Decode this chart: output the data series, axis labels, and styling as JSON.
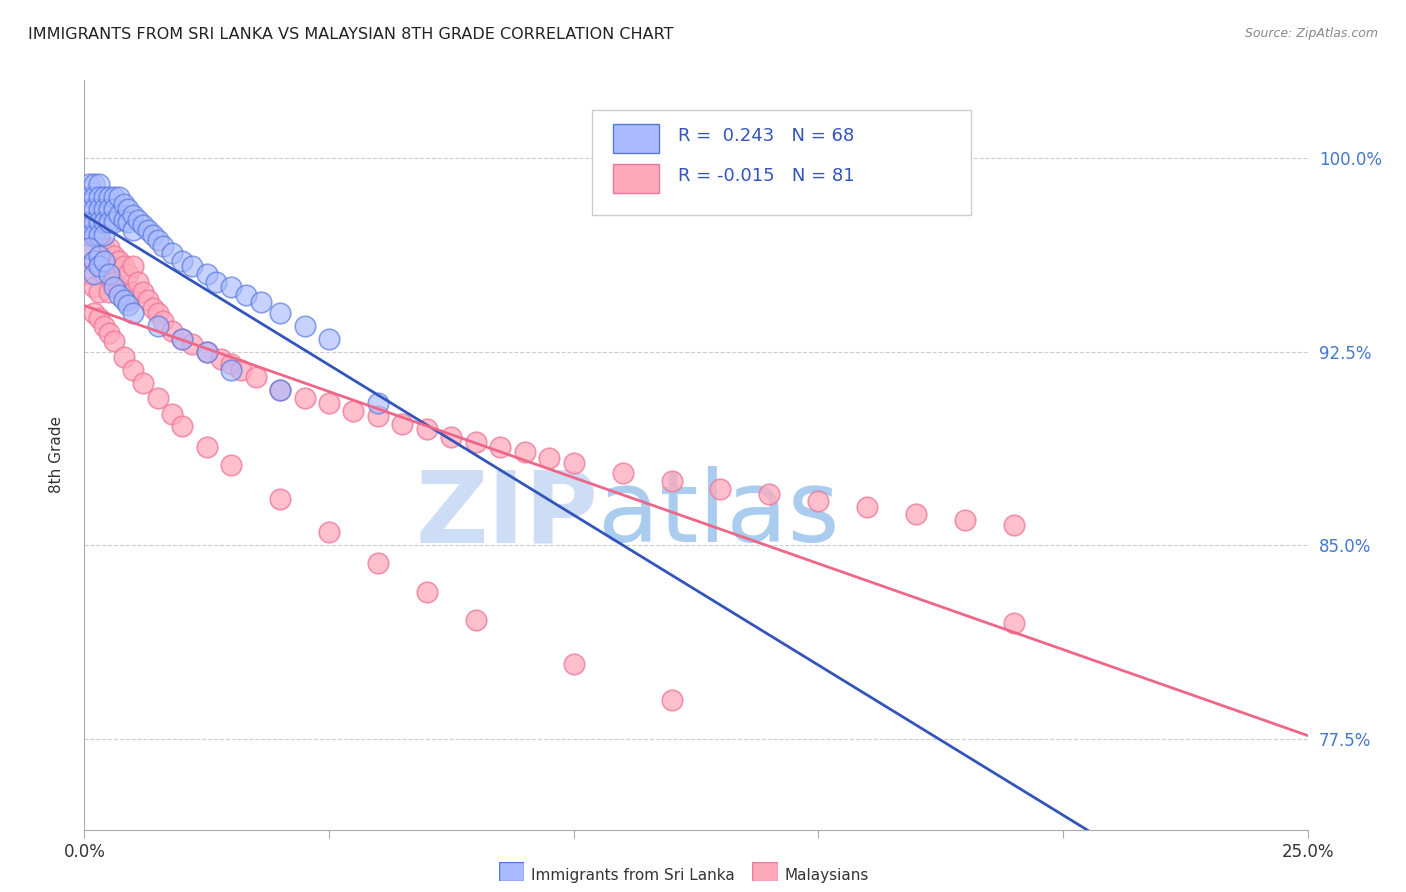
{
  "title": "IMMIGRANTS FROM SRI LANKA VS MALAYSIAN 8TH GRADE CORRELATION CHART",
  "source": "Source: ZipAtlas.com",
  "ylabel": "8th Grade",
  "legend_label1": "Immigrants from Sri Lanka",
  "legend_label2": "Malaysians",
  "R1": 0.243,
  "N1": 68,
  "R2": -0.015,
  "N2": 81,
  "blue_fill": "#aabbff",
  "blue_edge": "#5577dd",
  "pink_fill": "#ffaabb",
  "pink_edge": "#ee7799",
  "blue_line_color": "#3355bb",
  "pink_line_color": "#ee6688",
  "watermark_zip_color": "#ccddf5",
  "watermark_atlas_color": "#aaccee",
  "yticks": [
    0.775,
    0.85,
    0.925,
    1.0
  ],
  "ytick_labels": [
    "77.5%",
    "85.0%",
    "92.5%",
    "100.0%"
  ],
  "xlim": [
    0.0,
    0.25
  ],
  "ylim": [
    0.74,
    1.03
  ],
  "blue_x": [
    0.001,
    0.001,
    0.001,
    0.001,
    0.001,
    0.002,
    0.002,
    0.002,
    0.002,
    0.002,
    0.003,
    0.003,
    0.003,
    0.003,
    0.003,
    0.004,
    0.004,
    0.004,
    0.004,
    0.005,
    0.005,
    0.005,
    0.006,
    0.006,
    0.006,
    0.007,
    0.007,
    0.008,
    0.008,
    0.009,
    0.009,
    0.01,
    0.01,
    0.011,
    0.012,
    0.013,
    0.014,
    0.015,
    0.016,
    0.018,
    0.02,
    0.022,
    0.025,
    0.027,
    0.03,
    0.033,
    0.036,
    0.04,
    0.045,
    0.05,
    0.001,
    0.002,
    0.002,
    0.003,
    0.003,
    0.004,
    0.005,
    0.006,
    0.007,
    0.008,
    0.009,
    0.01,
    0.015,
    0.02,
    0.025,
    0.03,
    0.04,
    0.06
  ],
  "blue_y": [
    0.99,
    0.985,
    0.98,
    0.975,
    0.97,
    0.99,
    0.985,
    0.98,
    0.975,
    0.97,
    0.99,
    0.985,
    0.98,
    0.975,
    0.97,
    0.985,
    0.98,
    0.975,
    0.97,
    0.985,
    0.98,
    0.975,
    0.985,
    0.98,
    0.975,
    0.985,
    0.978,
    0.982,
    0.976,
    0.98,
    0.975,
    0.978,
    0.972,
    0.976,
    0.974,
    0.972,
    0.97,
    0.968,
    0.966,
    0.963,
    0.96,
    0.958,
    0.955,
    0.952,
    0.95,
    0.947,
    0.944,
    0.94,
    0.935,
    0.93,
    0.965,
    0.96,
    0.955,
    0.962,
    0.958,
    0.96,
    0.955,
    0.95,
    0.947,
    0.945,
    0.943,
    0.94,
    0.935,
    0.93,
    0.925,
    0.918,
    0.91,
    0.905
  ],
  "pink_x": [
    0.001,
    0.001,
    0.001,
    0.002,
    0.002,
    0.002,
    0.003,
    0.003,
    0.003,
    0.004,
    0.004,
    0.005,
    0.005,
    0.005,
    0.006,
    0.006,
    0.007,
    0.007,
    0.008,
    0.008,
    0.009,
    0.009,
    0.01,
    0.01,
    0.011,
    0.012,
    0.013,
    0.014,
    0.015,
    0.016,
    0.018,
    0.02,
    0.022,
    0.025,
    0.028,
    0.03,
    0.032,
    0.035,
    0.04,
    0.045,
    0.05,
    0.055,
    0.06,
    0.065,
    0.07,
    0.075,
    0.08,
    0.085,
    0.09,
    0.095,
    0.1,
    0.11,
    0.12,
    0.13,
    0.14,
    0.15,
    0.16,
    0.17,
    0.18,
    0.19,
    0.002,
    0.003,
    0.004,
    0.005,
    0.006,
    0.008,
    0.01,
    0.012,
    0.015,
    0.018,
    0.02,
    0.025,
    0.03,
    0.04,
    0.05,
    0.06,
    0.07,
    0.08,
    0.1,
    0.12,
    0.19
  ],
  "pink_y": [
    0.975,
    0.965,
    0.955,
    0.97,
    0.96,
    0.95,
    0.968,
    0.958,
    0.948,
    0.965,
    0.955,
    0.965,
    0.958,
    0.948,
    0.962,
    0.952,
    0.96,
    0.95,
    0.958,
    0.948,
    0.955,
    0.945,
    0.958,
    0.948,
    0.952,
    0.948,
    0.945,
    0.942,
    0.94,
    0.937,
    0.933,
    0.93,
    0.928,
    0.925,
    0.922,
    0.92,
    0.918,
    0.915,
    0.91,
    0.907,
    0.905,
    0.902,
    0.9,
    0.897,
    0.895,
    0.892,
    0.89,
    0.888,
    0.886,
    0.884,
    0.882,
    0.878,
    0.875,
    0.872,
    0.87,
    0.867,
    0.865,
    0.862,
    0.86,
    0.858,
    0.94,
    0.938,
    0.935,
    0.932,
    0.929,
    0.923,
    0.918,
    0.913,
    0.907,
    0.901,
    0.896,
    0.888,
    0.881,
    0.868,
    0.855,
    0.843,
    0.832,
    0.821,
    0.804,
    0.79,
    0.82
  ]
}
